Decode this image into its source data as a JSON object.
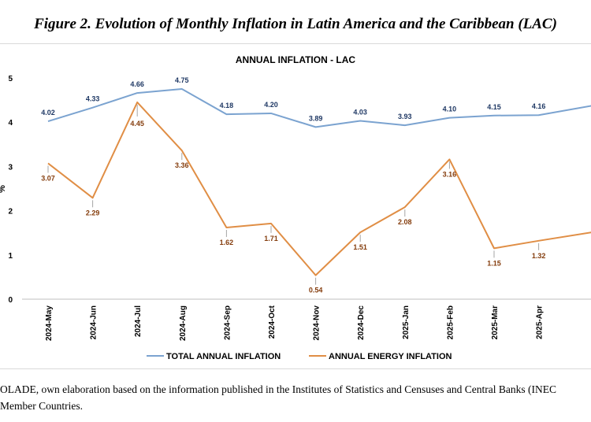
{
  "figure_title": "Figure 2. Evolution of Monthly Inflation in Latin America and the Caribbean (LAC)",
  "source_lines": [
    "OLADE, own elaboration based on the information published in the Institutes of Statistics and Censuses and Central Banks (INEC",
    "Member Countries."
  ],
  "chart_data": {
    "type": "line",
    "title": "ANNUAL INFLATION  - LAC",
    "ylabel": "%",
    "xlabel": "",
    "ylim": [
      0,
      5
    ],
    "yticks": [
      0,
      1,
      2,
      3,
      4,
      5
    ],
    "grid": false,
    "legend_position": "bottom",
    "categories": [
      "2024-May",
      "2024-Jun",
      "2024-Jul",
      "2024-Aug",
      "2024-Sep",
      "2024-Oct",
      "2024-Nov",
      "2024-Dec",
      "2025-Jan",
      "2025-Feb",
      "2025-Mar",
      "2025-Apr"
    ],
    "series": [
      {
        "name": "TOTAL ANNUAL INFLATION",
        "color": "#7ba3d0",
        "label_color": "#1f3864",
        "values": [
          4.02,
          4.33,
          4.66,
          4.75,
          4.18,
          4.2,
          3.89,
          4.03,
          3.93,
          4.1,
          4.15,
          4.16
        ],
        "labels": [
          "4.02",
          "4.33",
          "4.66",
          "4.75",
          "4.18",
          "4.20",
          "3.89",
          "4.03",
          "3.93",
          "4.10",
          "4.15",
          "4.16"
        ],
        "continues_to": 4.38
      },
      {
        "name": "ANNUAL ENERGY INFLATION",
        "color": "#e08e45",
        "label_color": "#843c0c",
        "values": [
          3.07,
          2.29,
          4.45,
          3.36,
          1.62,
          1.71,
          0.54,
          1.51,
          2.08,
          3.16,
          1.15,
          1.32
        ],
        "labels": [
          "3.07",
          "2.29",
          "4.45",
          "3.36",
          "1.62",
          "1.71",
          "0.54",
          "1.51",
          "2.08",
          "3.16",
          "1.15",
          "1.32"
        ],
        "continues_to": 1.52
      }
    ]
  }
}
